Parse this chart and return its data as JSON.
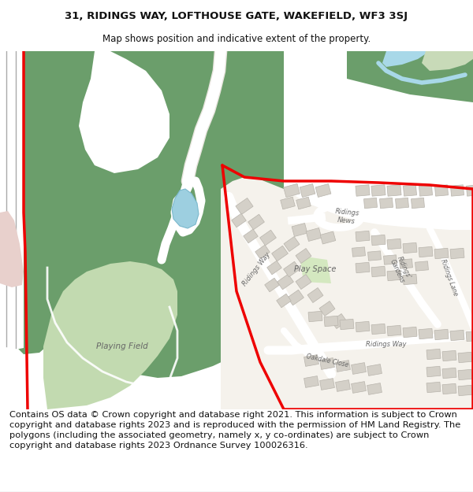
{
  "title_line1": "31, RIDINGS WAY, LOFTHOUSE GATE, WAKEFIELD, WF3 3SJ",
  "title_line2": "Map shows position and indicative extent of the property.",
  "footer_text": "Contains OS data © Crown copyright and database right 2021. This information is subject to Crown copyright and database rights 2023 and is reproduced with the permission of HM Land Registry. The polygons (including the associated geometry, namely x, y co-ordinates) are subject to Crown copyright and database rights 2023 Ordnance Survey 100026316.",
  "title_fontsize": 9.5,
  "subtitle_fontsize": 8.5,
  "footer_fontsize": 8.2,
  "bg_color": "#ffffff",
  "map_bg": "#f2efe8",
  "green_dark": "#6b9e6b",
  "green_light": "#c2dab0",
  "road_color": "#ffffff",
  "building_color": "#d4d0c8",
  "building_edge": "#b8b4ac",
  "water_color": "#9dcfe0",
  "water_stream": "#a8d8e8",
  "red_border": "#ee0000",
  "label_color": "#666666",
  "pink_area": "#e8d0cc",
  "white_area": "#ffffff"
}
